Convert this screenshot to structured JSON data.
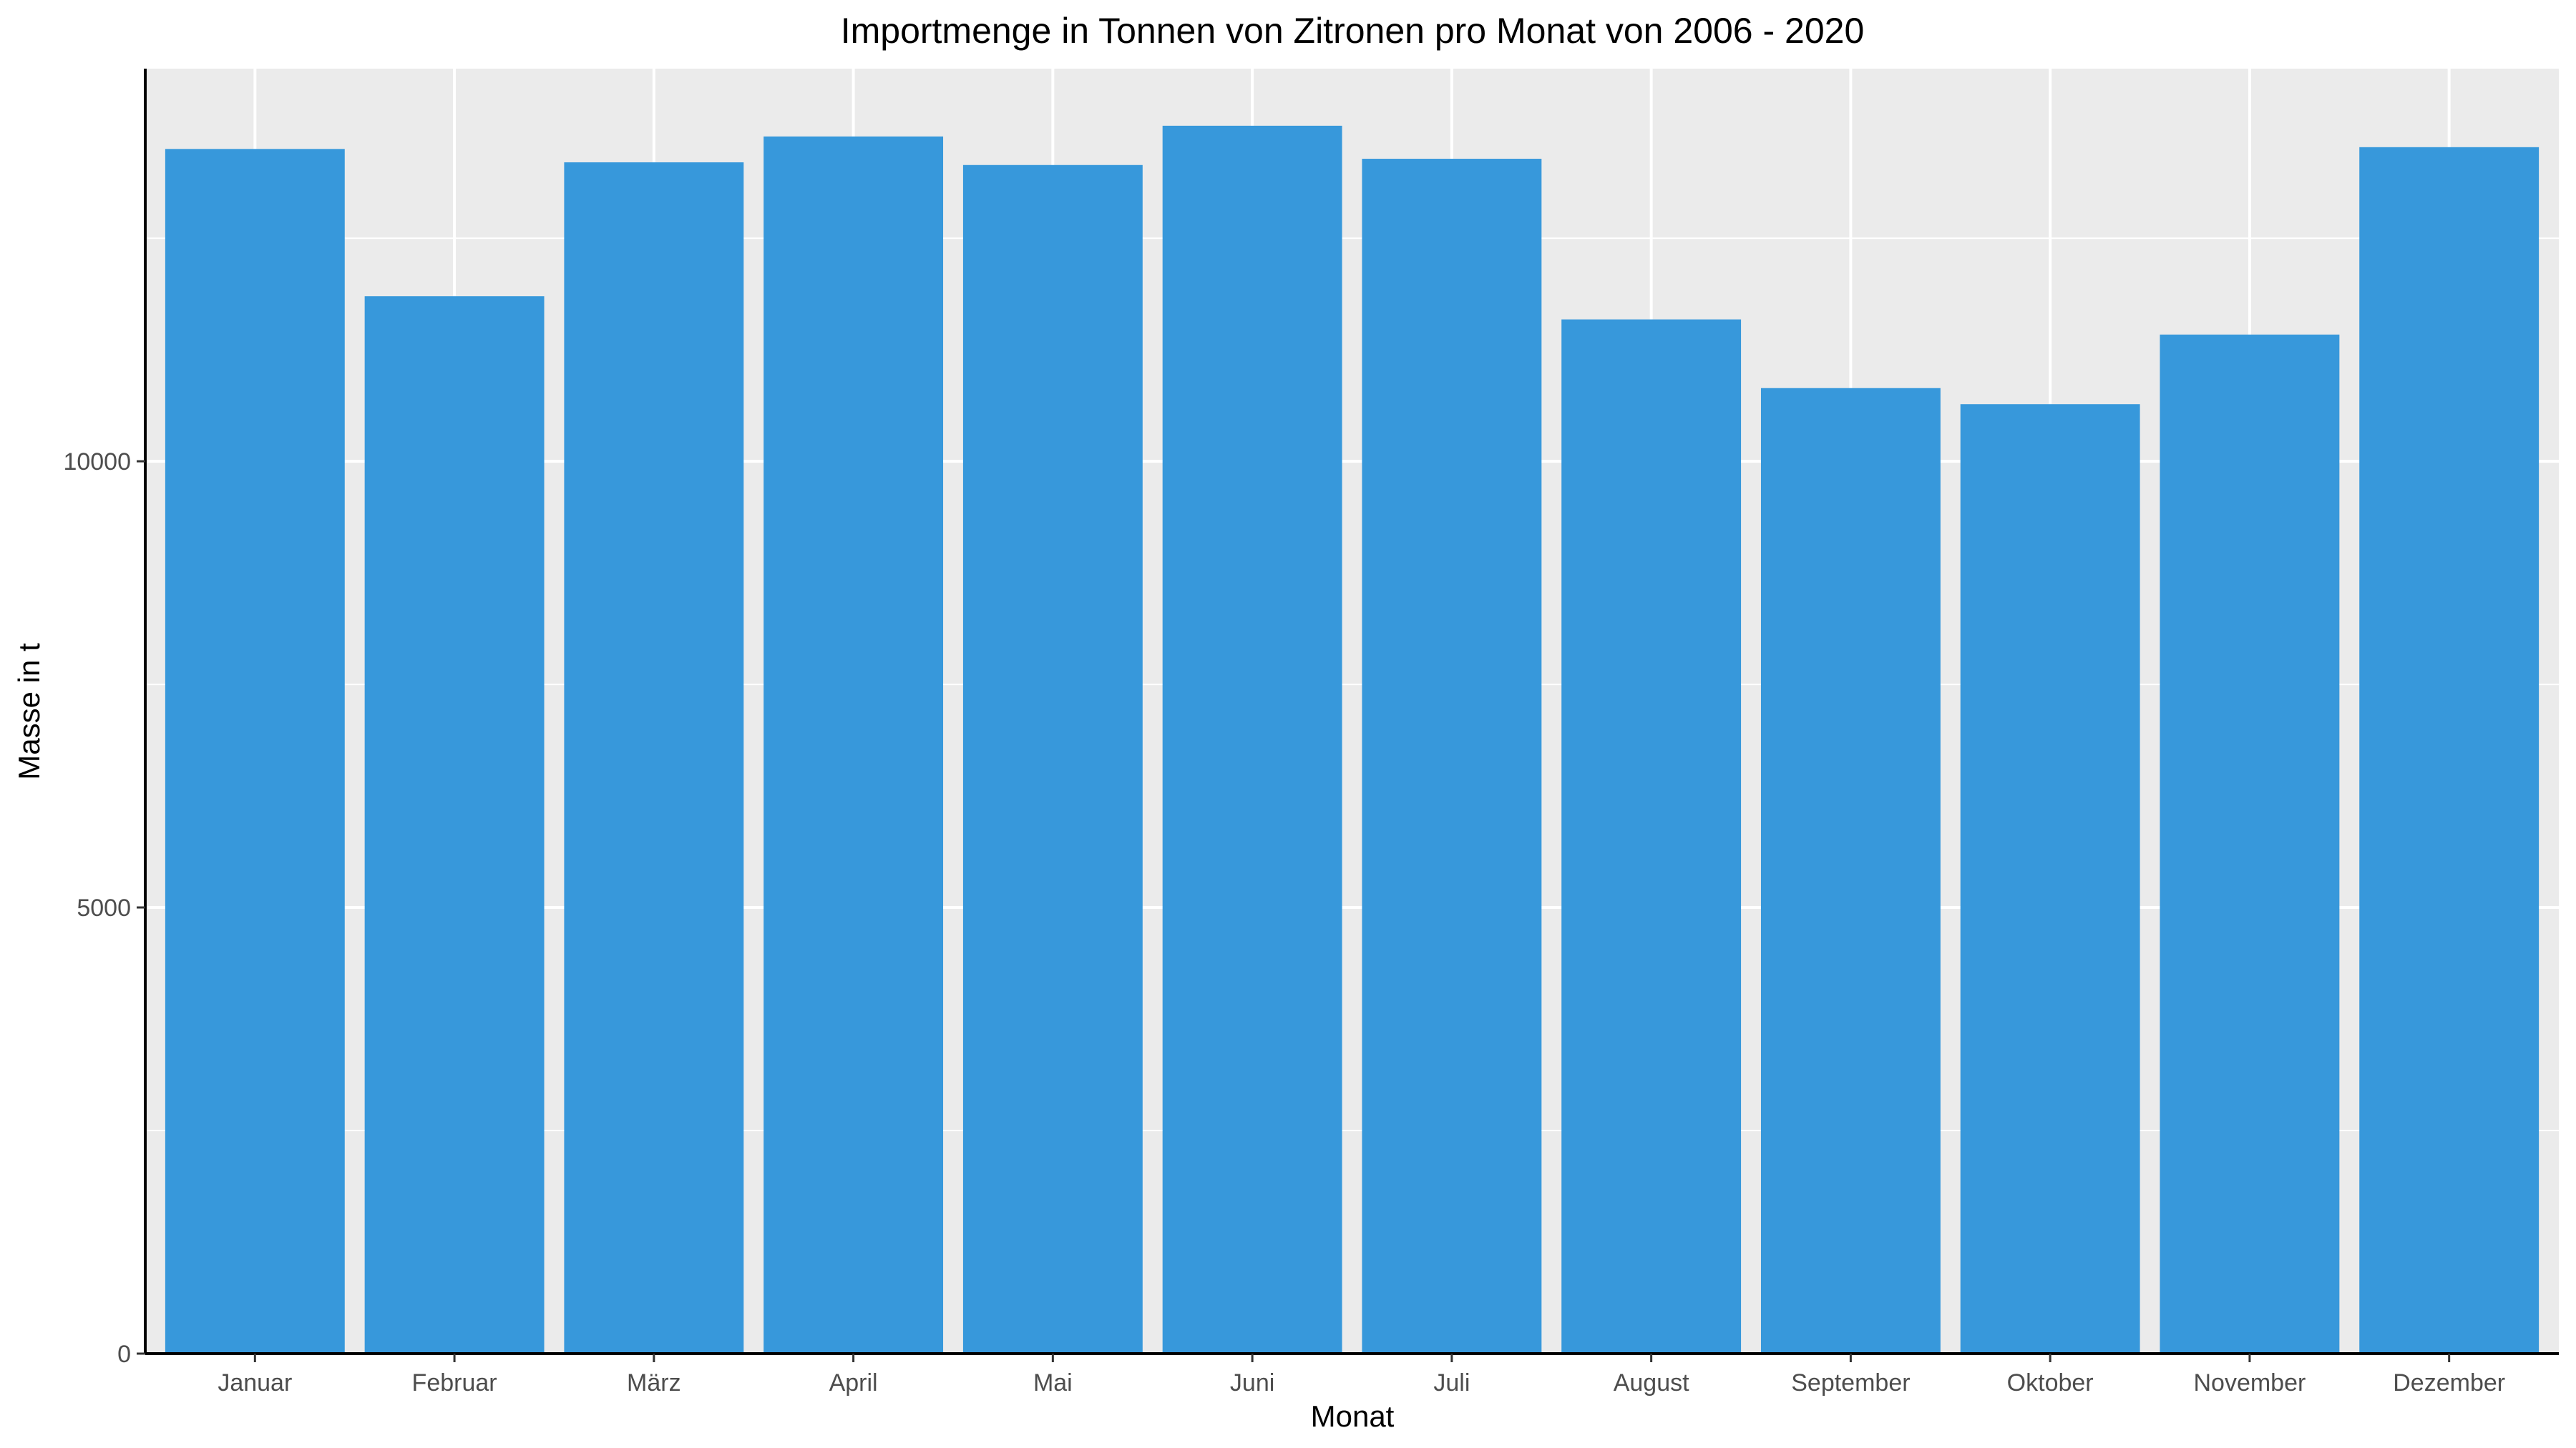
{
  "chart_data": {
    "type": "bar",
    "title": "Importmenge in Tonnen von Zitronen pro Monat von 2006 - 2020",
    "xlabel": "Monat",
    "ylabel": "Masse in t",
    "categories": [
      "Januar",
      "Februar",
      "März",
      "April",
      "Mai",
      "Juni",
      "Juli",
      "August",
      "September",
      "Oktober",
      "November",
      "Dezember"
    ],
    "values": [
      13500,
      11850,
      13350,
      13640,
      13320,
      13760,
      13390,
      11590,
      10820,
      10640,
      11420,
      13520
    ],
    "ylim": [
      0,
      14400
    ],
    "yticks": [
      0,
      5000,
      10000
    ],
    "grid": true,
    "colors": {
      "bar": "#3798db",
      "panel": "#ebebeb",
      "grid": "#ffffff",
      "axis": "#000000"
    }
  }
}
